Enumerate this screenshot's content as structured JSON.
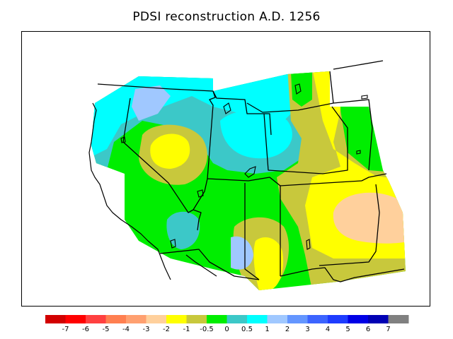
{
  "title": "PDSI reconstruction A.D. 1256",
  "colors": {
    "background": "#ffffff",
    "border": "#000000",
    "c_neg2_neg1": "#ffff00",
    "c_neg1_neg05": "#c8c83c",
    "c_neg05_0": "#00ee00",
    "c_0_05": "#3cc8c8",
    "c_05_1": "#00ffff",
    "c_1_2": "#a0c8ff",
    "c_neg3_neg2": "#ffd09c"
  },
  "colorbar": {
    "ticks": [
      "-7",
      "-6",
      "-5",
      "-4",
      "-3",
      "-2",
      "-1",
      "-0.5",
      "0",
      "0.5",
      "1",
      "2",
      "3",
      "4",
      "5",
      "6",
      "7"
    ],
    "colors": [
      "#d20000",
      "#ff0000",
      "#ff4040",
      "#ff7f50",
      "#ffa070",
      "#ffd09c",
      "#ffff00",
      "#c8c83c",
      "#00ee00",
      "#3cc8c8",
      "#00ffff",
      "#a0c8ff",
      "#6496ff",
      "#3c64ff",
      "#1e3cff",
      "#0000e6",
      "#0000b4",
      "#808080"
    ]
  }
}
